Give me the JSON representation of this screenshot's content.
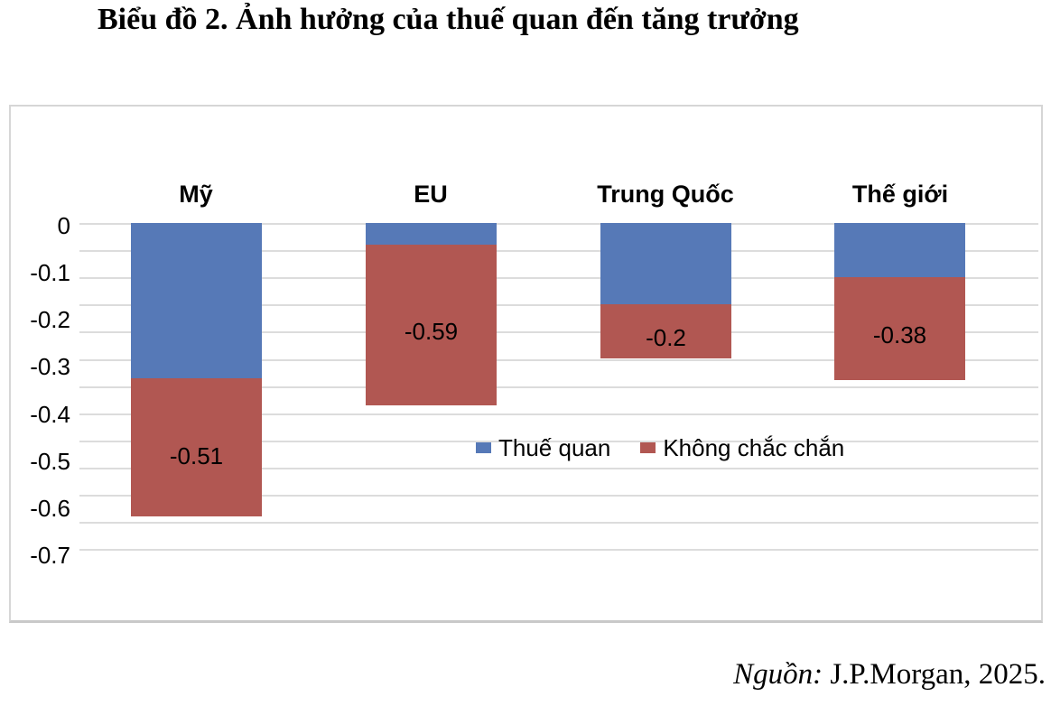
{
  "title": "Biểu đồ 2. Ảnh hưởng của thuế quan đến tăng trưởng",
  "source": {
    "prefix": "Nguồn:",
    "text": " J.P.Morgan, 2025."
  },
  "colors": {
    "tariff_blue": "#5679B7",
    "uncertainty_red": "#B15752",
    "gridline": "#DCDCDC",
    "panel_border": "#D6D6D6",
    "text": "#000000"
  },
  "chart_data": {
    "type": "bar",
    "stacked": true,
    "orientation": "vertical",
    "title": "Biểu đồ 2. Ảnh hưởng của thuế quan đến tăng trưởng",
    "categories": [
      "Mỹ",
      "EU",
      "Trung Quốc",
      "Thế giới"
    ],
    "series": [
      {
        "name": "Thuế quan",
        "color": "#5679B7",
        "values": [
          -0.57,
          -0.08,
          -0.3,
          -0.2
        ]
      },
      {
        "name": "Không chắc chắn",
        "color": "#B15752",
        "values": [
          -0.51,
          -0.59,
          -0.2,
          -0.38
        ]
      }
    ],
    "totals": [
      -1.08,
      -0.67,
      -0.5,
      -0.58
    ],
    "data_labels": {
      "labeled_series": "Không chắc chắn",
      "values": [
        "-0.51",
        "-0.59",
        "-0.2",
        "-0.38"
      ]
    },
    "y_axis": {
      "tick_labels": [
        "0",
        "-0.1",
        "-0.2",
        "-0.3",
        "-0.4",
        "-0.5",
        "-0.6",
        "-0.7"
      ],
      "range_shown": [
        0,
        -0.7
      ]
    },
    "legend": [
      "Thuế quan",
      "Không chắc chắn"
    ],
    "legend_position": "inside-center",
    "grid": "horizontal"
  }
}
